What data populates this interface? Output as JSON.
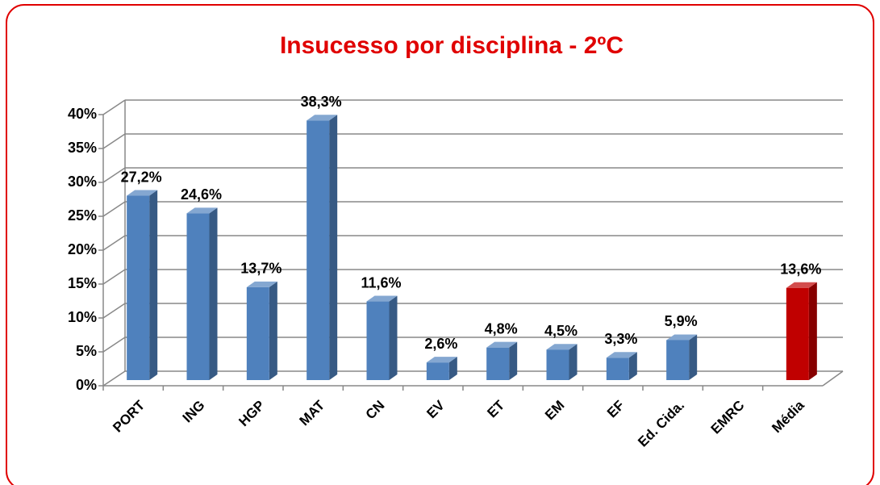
{
  "chart_data": {
    "type": "bar3d",
    "title": "Insucesso por disciplina - 2ºC",
    "categories": [
      "PORT",
      "ING",
      "HGP",
      "MAT",
      "CN",
      "EV",
      "ET",
      "EM",
      "EF",
      "Ed. Cida.",
      "EMRC",
      "Média"
    ],
    "values": [
      27.2,
      24.6,
      13.7,
      38.3,
      11.6,
      2.6,
      4.8,
      4.5,
      3.3,
      5.9,
      null,
      13.6
    ],
    "value_labels": [
      "27,2%",
      "24,6%",
      "13,7%",
      "38,3%",
      "11,6%",
      "2,6%",
      "4,8%",
      "4,5%",
      "3,3%",
      "5,9%",
      null,
      "13,6%"
    ],
    "colors": [
      "#4f81bd",
      "#4f81bd",
      "#4f81bd",
      "#4f81bd",
      "#4f81bd",
      "#4f81bd",
      "#4f81bd",
      "#4f81bd",
      "#4f81bd",
      "#4f81bd",
      "#4f81bd",
      "#c00000"
    ],
    "ylim": [
      0,
      40
    ],
    "yticks": [
      {
        "value": 0,
        "label": "0%"
      },
      {
        "value": 5,
        "label": "5%"
      },
      {
        "value": 10,
        "label": "10%"
      },
      {
        "value": 15,
        "label": "15%"
      },
      {
        "value": 20,
        "label": "20%"
      },
      {
        "value": 25,
        "label": "25%"
      },
      {
        "value": 30,
        "label": "30%"
      },
      {
        "value": 35,
        "label": "35%"
      },
      {
        "value": 40,
        "label": "40%"
      }
    ],
    "grid": true
  }
}
